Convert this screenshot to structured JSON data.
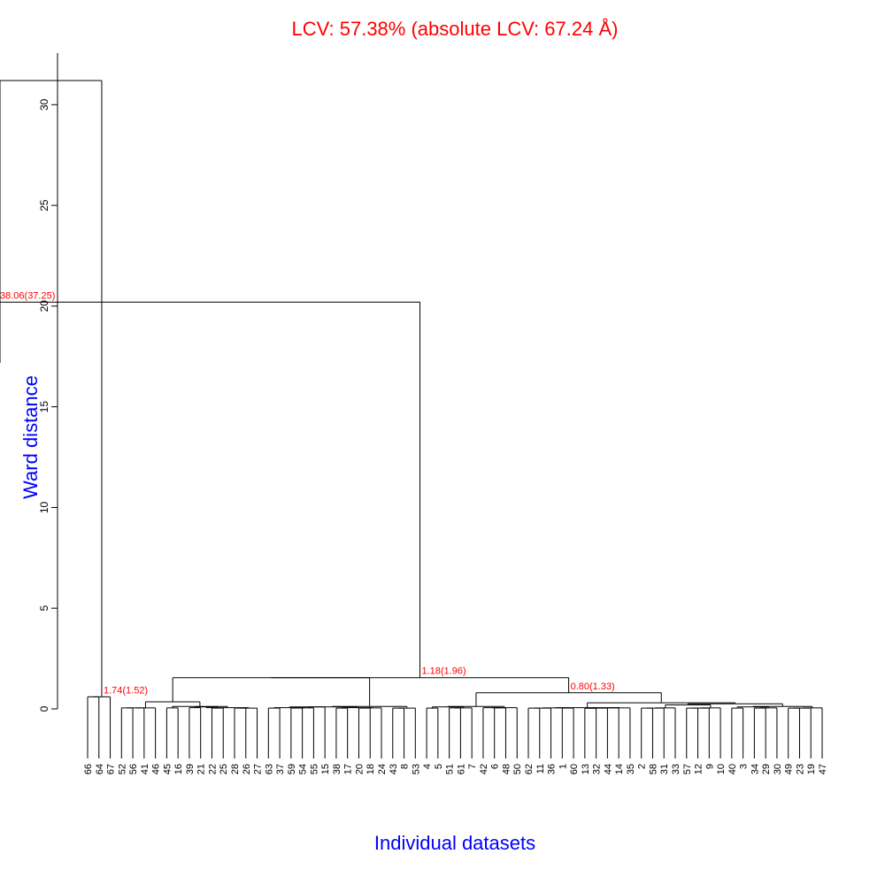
{
  "chart_data": {
    "type": "dendrogram",
    "title": "LCV: 57.38% (absolute LCV: 67.24 Å)",
    "xlabel": "Individual datasets",
    "ylabel": "Ward distance",
    "ylim": [
      0,
      31.2
    ],
    "yticks": [
      0,
      5,
      10,
      15,
      20,
      25,
      30
    ],
    "grid": false,
    "colors": {
      "title": "#ff0000",
      "axis_titles": "#0000ff",
      "annotations": "#ff0000",
      "lines": "#000000"
    },
    "leaf_order": [
      "66",
      "64",
      "67",
      "52",
      "56",
      "41",
      "46",
      "45",
      "16",
      "39",
      "21",
      "22",
      "25",
      "28",
      "26",
      "27",
      "63",
      "37",
      "59",
      "54",
      "55",
      "15",
      "38",
      "17",
      "20",
      "18",
      "24",
      "43",
      "8",
      "53",
      "4",
      "5",
      "51",
      "61",
      "7",
      "42",
      "6",
      "48",
      "50",
      "62",
      "11",
      "36",
      "1",
      "60",
      "13",
      "32",
      "44",
      "14",
      "35",
      "2",
      "58",
      "31",
      "33",
      "57",
      "12",
      "9",
      "10",
      "40",
      "3",
      "34",
      "29",
      "30",
      "49",
      "23",
      "19",
      "47"
    ],
    "nodes": [
      {
        "children": [
          "66",
          "64"
        ],
        "height": 0.6
      },
      {
        "children": [
          "67",
          0
        ],
        "height": 0.6
      },
      {
        "children": [
          "52",
          "56"
        ],
        "height": 0.05
      },
      {
        "children": [
          2,
          "41"
        ],
        "height": 0.05
      },
      {
        "children": [
          3,
          "46"
        ],
        "height": 0.05
      },
      {
        "children": [
          "45",
          "16"
        ],
        "height": 0.05
      },
      {
        "children": [
          "39",
          "21"
        ],
        "height": 0.06
      },
      {
        "children": [
          "22",
          "25"
        ],
        "height": 0.04
      },
      {
        "children": [
          6,
          7
        ],
        "height": 0.1
      },
      {
        "children": [
          "28",
          "26"
        ],
        "height": 0.04
      },
      {
        "children": [
          9,
          "27"
        ],
        "height": 0.04
      },
      {
        "children": [
          8,
          10
        ],
        "height": 0.06
      },
      {
        "children": [
          5,
          11
        ],
        "height": 0.12
      },
      {
        "children": [
          4,
          12
        ],
        "height": 0.35
      },
      {
        "children": [
          "63",
          "37"
        ],
        "height": 0.04
      },
      {
        "children": [
          "59",
          "54"
        ],
        "height": 0.04
      },
      {
        "children": [
          15,
          "55"
        ],
        "height": 0.05
      },
      {
        "children": [
          14,
          16
        ],
        "height": 0.06
      },
      {
        "children": [
          17,
          "15"
        ],
        "height": 0.1
      },
      {
        "children": [
          "38",
          "17"
        ],
        "height": 0.04
      },
      {
        "children": [
          "20",
          "18"
        ],
        "height": 0.04
      },
      {
        "children": [
          20,
          "24"
        ],
        "height": 0.05
      },
      {
        "children": [
          19,
          21
        ],
        "height": 0.06
      },
      {
        "children": [
          18,
          22
        ],
        "height": 0.1
      },
      {
        "children": [
          "43",
          "8"
        ],
        "height": 0.04
      },
      {
        "children": [
          24,
          "53"
        ],
        "height": 0.04
      },
      {
        "children": [
          23,
          25
        ],
        "height": 0.12
      },
      {
        "children": [
          13,
          26
        ],
        "height": 1.55
      },
      {
        "children": [
          "4",
          "5"
        ],
        "height": 0.04
      },
      {
        "children": [
          "51",
          "61"
        ],
        "height": 0.05
      },
      {
        "children": [
          29,
          "7"
        ],
        "height": 0.05
      },
      {
        "children": [
          28,
          30
        ],
        "height": 0.1
      },
      {
        "children": [
          "6",
          "48"
        ],
        "height": 0.05
      },
      {
        "children": [
          "42",
          32
        ],
        "height": 0.06
      },
      {
        "children": [
          33,
          "50"
        ],
        "height": 0.06
      },
      {
        "children": [
          31,
          34
        ],
        "height": 0.12
      },
      {
        "children": [
          "62",
          "11"
        ],
        "height": 0.04
      },
      {
        "children": [
          36,
          "36"
        ],
        "height": 0.04
      },
      {
        "children": [
          "1",
          "60"
        ],
        "height": 0.04
      },
      {
        "children": [
          37,
          38
        ],
        "height": 0.05
      },
      {
        "children": [
          "13",
          "32"
        ],
        "height": 0.03
      },
      {
        "children": [
          40,
          "44"
        ],
        "height": 0.04
      },
      {
        "children": [
          41,
          "14"
        ],
        "height": 0.05
      },
      {
        "children": [
          42,
          "35"
        ],
        "height": 0.05
      },
      {
        "children": [
          39,
          43
        ],
        "height": 0.06
      },
      {
        "children": [
          "2",
          "58"
        ],
        "height": 0.04
      },
      {
        "children": [
          45,
          "31"
        ],
        "height": 0.04
      },
      {
        "children": [
          46,
          "33"
        ],
        "height": 0.05
      },
      {
        "children": [
          "57",
          "12"
        ],
        "height": 0.04
      },
      {
        "children": [
          48,
          "9"
        ],
        "height": 0.04
      },
      {
        "children": [
          49,
          "10"
        ],
        "height": 0.05
      },
      {
        "children": [
          47,
          50
        ],
        "height": 0.2
      },
      {
        "children": [
          "40",
          "3"
        ],
        "height": 0.04
      },
      {
        "children": [
          "34",
          "29"
        ],
        "height": 0.04
      },
      {
        "children": [
          53,
          "30"
        ],
        "height": 0.05
      },
      {
        "children": [
          52,
          54
        ],
        "height": 0.1
      },
      {
        "children": [
          "49",
          "23"
        ],
        "height": 0.04
      },
      {
        "children": [
          56,
          "19"
        ],
        "height": 0.04
      },
      {
        "children": [
          57,
          "47"
        ],
        "height": 0.05
      },
      {
        "children": [
          55,
          58
        ],
        "height": 0.12
      },
      {
        "children": [
          51,
          59
        ],
        "height": 0.25
      },
      {
        "children": [
          44,
          60
        ],
        "height": 0.3
      },
      {
        "children": [
          35,
          61
        ],
        "height": 0.8
      },
      {
        "children": [
          27,
          62
        ],
        "height": 1.55
      },
      {
        "children": [
          "65",
          63
        ],
        "height": 20.2
      },
      {
        "children": [
          1,
          64
        ],
        "height": 31.2
      }
    ],
    "annotations": [
      {
        "text": "38.06(37.25)",
        "node": 64
      },
      {
        "text": "1.18(1.96)",
        "node": 63
      },
      {
        "text": "0.80(1.33)",
        "node": 62
      },
      {
        "text": "1.74(1.52)",
        "node": 1
      }
    ]
  }
}
